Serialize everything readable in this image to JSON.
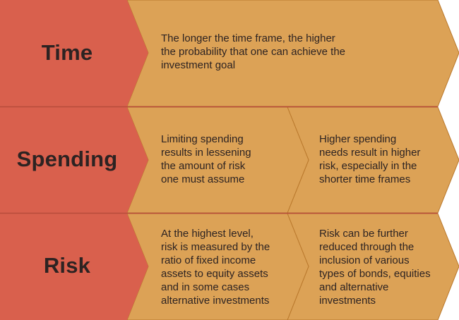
{
  "colors": {
    "label_chevron": "#d9604d",
    "content_chevron": "#dca256",
    "chevron_border": "#b9782c",
    "text": "#2d2322"
  },
  "rows": [
    {
      "label": "Time",
      "cells": [
        "The longer the time frame, the higher\nthe probability that one can achieve the\ninvestment goal"
      ]
    },
    {
      "label": "Spending",
      "cells": [
        "Limiting spending\nresults in lessening\nthe amount of risk\none must assume",
        "Higher spending\nneeds result in higher\nrisk, especially in the\nshorter time frames"
      ]
    },
    {
      "label": "Risk",
      "cells": [
        "At the highest level,\nrisk is measured by the\nratio of fixed income\nassets to equity assets\nand in some cases\nalternative investments",
        "Risk can be further\nreduced through the\ninclusion of various\ntypes of bonds, equities\nand alternative\ninvestments"
      ]
    }
  ]
}
